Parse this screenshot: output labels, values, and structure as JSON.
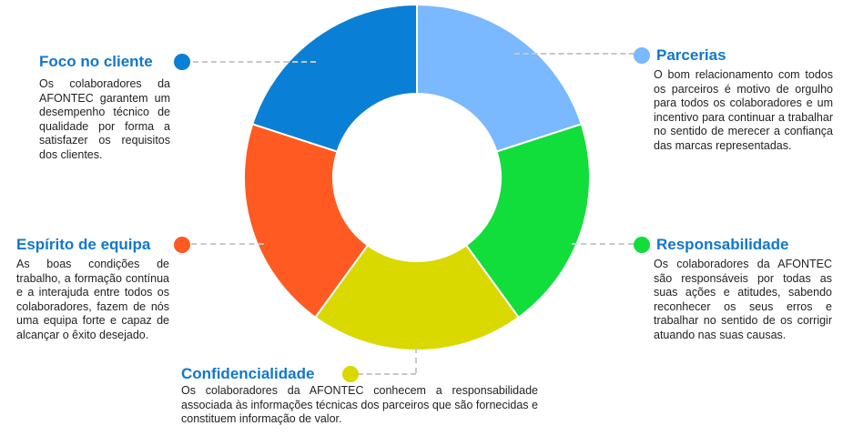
{
  "segments": [
    {
      "key": "parcerias",
      "title": "Parcerias",
      "color": "#7ab8ff",
      "description": "O bom relacionamento com todos os parceiros é motivo de orgulho para todos os colaboradores e um incentivo para continuar a trabalhar no sentido de merecer a confiança das marcas representadas."
    },
    {
      "key": "responsabilidade",
      "title": "Responsabilidade",
      "color": "#11dd3b",
      "description": "Os colaboradores da AFONTEC são responsáveis por todas as suas ações e atitudes, sabendo reconhecer os seus erros e trabalhar no sentido de os corrigir atuando nas suas causas."
    },
    {
      "key": "confidencialidade",
      "title": "Confidencialidade",
      "color": "#d9d900",
      "description": "Os colaboradores da AFONTEC conhecem a responsabilidade associada às informações técnicas dos parceiros que são fornecidas e constituem informação de valor."
    },
    {
      "key": "espirito",
      "title": "Espírito de equipa",
      "color": "#ff5a22",
      "description": "As boas condições de trabalho, a formação contínua e a interajuda entre todos os colaboradores, fazem de nós uma equipa forte e capaz de alcançar o êxito desejado."
    },
    {
      "key": "foco",
      "title": "Foco no cliente",
      "color": "#0a7fd6",
      "description": "Os colaboradores da AFONTEC garantem um desempenho técnico de qualidade por forma a satisfazer os requisitos dos clientes."
    }
  ]
}
